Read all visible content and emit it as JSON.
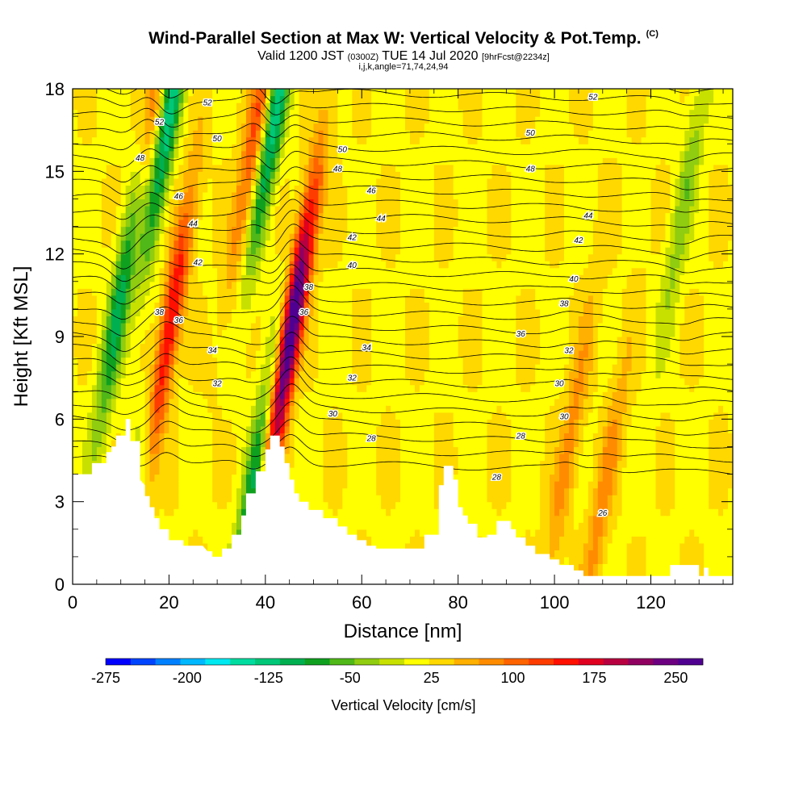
{
  "chart_data": {
    "type": "heatmap",
    "title": "Wind-Parallel Section at Max W: Vertical Velocity & Pot.Temp.",
    "title_mark": "(C)",
    "subtitle_parts": [
      "Valid 1200 JST",
      "(0300Z)",
      "TUE 14 Jul 2020",
      "[9hrFcst@2234z]"
    ],
    "info_line": "i,j,k,angle=71,74,24,94",
    "xlabel": "Distance [nm]",
    "ylabel": "Height [Kft MSL]",
    "xlim": [
      0,
      137
    ],
    "ylim": [
      0,
      18
    ],
    "xticks": [
      0,
      20,
      40,
      60,
      80,
      100,
      120
    ],
    "yticks": [
      0,
      3,
      6,
      9,
      12,
      15,
      18
    ],
    "colorbar": {
      "label": "Vertical Velocity [cm/s]",
      "min": -275,
      "max": 275,
      "step": 25,
      "tick_labels": [
        -275,
        -200,
        -125,
        -50,
        25,
        100,
        175,
        250
      ],
      "colors": [
        "#0000ff",
        "#0044ff",
        "#0080ff",
        "#00b8ff",
        "#00e8f0",
        "#00dca0",
        "#00c878",
        "#00b050",
        "#10a020",
        "#50b818",
        "#90cc10",
        "#c8e000",
        "#ffff00",
        "#ffd800",
        "#ffb000",
        "#ff8c00",
        "#ff6400",
        "#ff3c00",
        "#ff1000",
        "#e00020",
        "#b80040",
        "#900060",
        "#6c0080",
        "#500090"
      ]
    },
    "theta_contour_labels": [
      26,
      28,
      30,
      32,
      34,
      36,
      38,
      40,
      42,
      44,
      46,
      48,
      50,
      52
    ],
    "terrain": [
      [
        0,
        4
      ],
      [
        4,
        4
      ],
      [
        4,
        4.4
      ],
      [
        7,
        4.4
      ],
      [
        7,
        4.8
      ],
      [
        8,
        4.8
      ],
      [
        8,
        5
      ],
      [
        9,
        5
      ],
      [
        9,
        5.4
      ],
      [
        11,
        5.4
      ],
      [
        11,
        6
      ],
      [
        12,
        6
      ],
      [
        12,
        5.2
      ],
      [
        14,
        5.2
      ],
      [
        14,
        3.8
      ],
      [
        15,
        3.6
      ],
      [
        15,
        3.2
      ],
      [
        16,
        3.2
      ],
      [
        16,
        2.8
      ],
      [
        17,
        2.8
      ],
      [
        17,
        2.4
      ],
      [
        18,
        2.4
      ],
      [
        18,
        2
      ],
      [
        20,
        2
      ],
      [
        20,
        1.6
      ],
      [
        23,
        1.6
      ],
      [
        23,
        1.4
      ],
      [
        27,
        1.4
      ],
      [
        28,
        1.2
      ],
      [
        29,
        1.2
      ],
      [
        29,
        1
      ],
      [
        31,
        1
      ],
      [
        31,
        1.3
      ],
      [
        33,
        1.3
      ],
      [
        33,
        1.8
      ],
      [
        35,
        1.8
      ],
      [
        35,
        2.5
      ],
      [
        36,
        2.5
      ],
      [
        36,
        3.3
      ],
      [
        38,
        3.3
      ],
      [
        38,
        4.1
      ],
      [
        40,
        4.1
      ],
      [
        40,
        4.9
      ],
      [
        41,
        4.9
      ],
      [
        41,
        5.4
      ],
      [
        43,
        5.4
      ],
      [
        43,
        5
      ],
      [
        44,
        5
      ],
      [
        44,
        4.4
      ],
      [
        45,
        4.4
      ],
      [
        45,
        3.8
      ],
      [
        46,
        3.8
      ],
      [
        46,
        3.3
      ],
      [
        47,
        3.3
      ],
      [
        47,
        3
      ],
      [
        49,
        3
      ],
      [
        49,
        2.7
      ],
      [
        52,
        2.7
      ],
      [
        52,
        2.4
      ],
      [
        55,
        2.4
      ],
      [
        55,
        2.1
      ],
      [
        57,
        2.1
      ],
      [
        57,
        1.8
      ],
      [
        59,
        1.8
      ],
      [
        59,
        1.6
      ],
      [
        61,
        1.6
      ],
      [
        61,
        1.4
      ],
      [
        63,
        1.4
      ],
      [
        63,
        1.3
      ],
      [
        73,
        1.3
      ],
      [
        73,
        1.8
      ],
      [
        76,
        1.8
      ],
      [
        76,
        3.6
      ],
      [
        77,
        3.6
      ],
      [
        77,
        4.3
      ],
      [
        79,
        4.3
      ],
      [
        79,
        3.8
      ],
      [
        80,
        3.8
      ],
      [
        80,
        2.8
      ],
      [
        81,
        2.8
      ],
      [
        81,
        2.5
      ],
      [
        82,
        2.5
      ],
      [
        82,
        2.2
      ],
      [
        84,
        2.2
      ],
      [
        84,
        1.7
      ],
      [
        86,
        1.7
      ],
      [
        86,
        1.8
      ],
      [
        88,
        1.8
      ],
      [
        88,
        2.3
      ],
      [
        91,
        2.3
      ],
      [
        91,
        2
      ],
      [
        92,
        2
      ],
      [
        92,
        1.7
      ],
      [
        94,
        1.7
      ],
      [
        94,
        1.4
      ],
      [
        96,
        1.4
      ],
      [
        96,
        1.1
      ],
      [
        99,
        1.1
      ],
      [
        99,
        0.9
      ],
      [
        101,
        0.9
      ],
      [
        101,
        0.7
      ],
      [
        104,
        0.7
      ],
      [
        104,
        0.5
      ],
      [
        106,
        0.5
      ],
      [
        106,
        0.3
      ],
      [
        124,
        0.3
      ],
      [
        124,
        0.7
      ],
      [
        130,
        0.7
      ],
      [
        130,
        0.3
      ],
      [
        131,
        0.3
      ],
      [
        131,
        0.6
      ],
      [
        132,
        0.6
      ],
      [
        132,
        0.3
      ],
      [
        137,
        0.3
      ],
      [
        137,
        0
      ],
      [
        0,
        0
      ]
    ],
    "updraft_cores": [
      {
        "x": 45.3,
        "y": 9.2,
        "w_max": 275
      },
      {
        "x": 19.5,
        "y": 8.8,
        "w_max": 175
      },
      {
        "x": 16,
        "y": 16.5,
        "w_max": 100
      },
      {
        "x": 38,
        "y": 16.5,
        "w_max": 100
      },
      {
        "x": 103,
        "y": 5,
        "w_max": 60
      },
      {
        "x": 110,
        "y": 3,
        "w_max": 60
      }
    ],
    "downdraft_cores": [
      {
        "x": 10.5,
        "y": 11,
        "w_min": -150
      },
      {
        "x": 20,
        "y": 17,
        "w_min": -150
      },
      {
        "x": 42,
        "y": 17,
        "w_min": -150
      },
      {
        "x": 37.5,
        "y": 3.5,
        "w_min": -125
      },
      {
        "x": 14.5,
        "y": 4.5,
        "w_min": -75
      },
      {
        "x": 127,
        "y": 14,
        "w_min": -60
      }
    ]
  }
}
